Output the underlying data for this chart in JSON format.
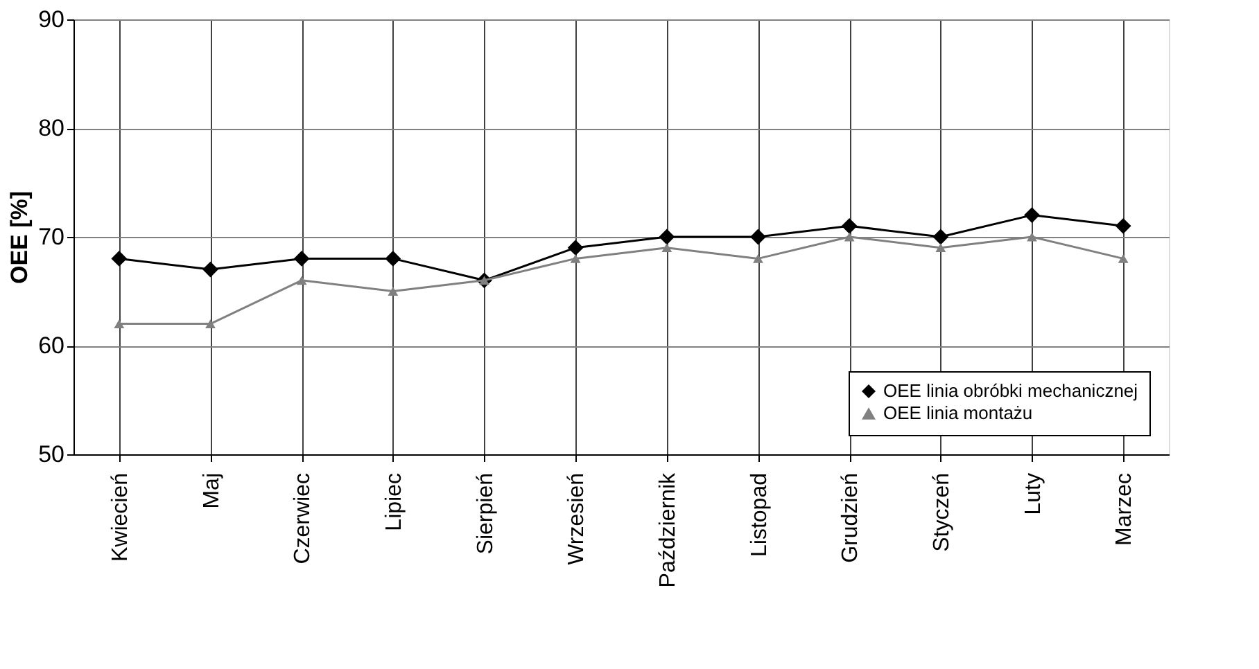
{
  "chart_data": {
    "type": "line",
    "ylabel": "OEE [%]",
    "categories": [
      "Kwiecień",
      "Maj",
      "Czerwiec",
      "Lipiec",
      "Sierpień",
      "Wrzesień",
      "Październik",
      "Listopad",
      "Grudzień",
      "Styczeń",
      "Luty",
      "Marzec"
    ],
    "series": [
      {
        "name": "OEE linia obróbki mechanicznej",
        "color": "#000000",
        "marker": "diamond",
        "values": [
          68,
          67,
          68,
          68,
          66,
          69,
          70,
          70,
          71,
          70,
          72,
          71
        ]
      },
      {
        "name": "OEE linia montażu",
        "color": "#808080",
        "marker": "triangle",
        "values": [
          62,
          62,
          66,
          65,
          66,
          68,
          69,
          68,
          70,
          69,
          70,
          68
        ]
      }
    ],
    "ylim": [
      50,
      90
    ],
    "yticks": [
      50,
      60,
      70,
      80,
      90
    ],
    "grid": true,
    "legend": "bottom right",
    "line_style": "solid"
  }
}
